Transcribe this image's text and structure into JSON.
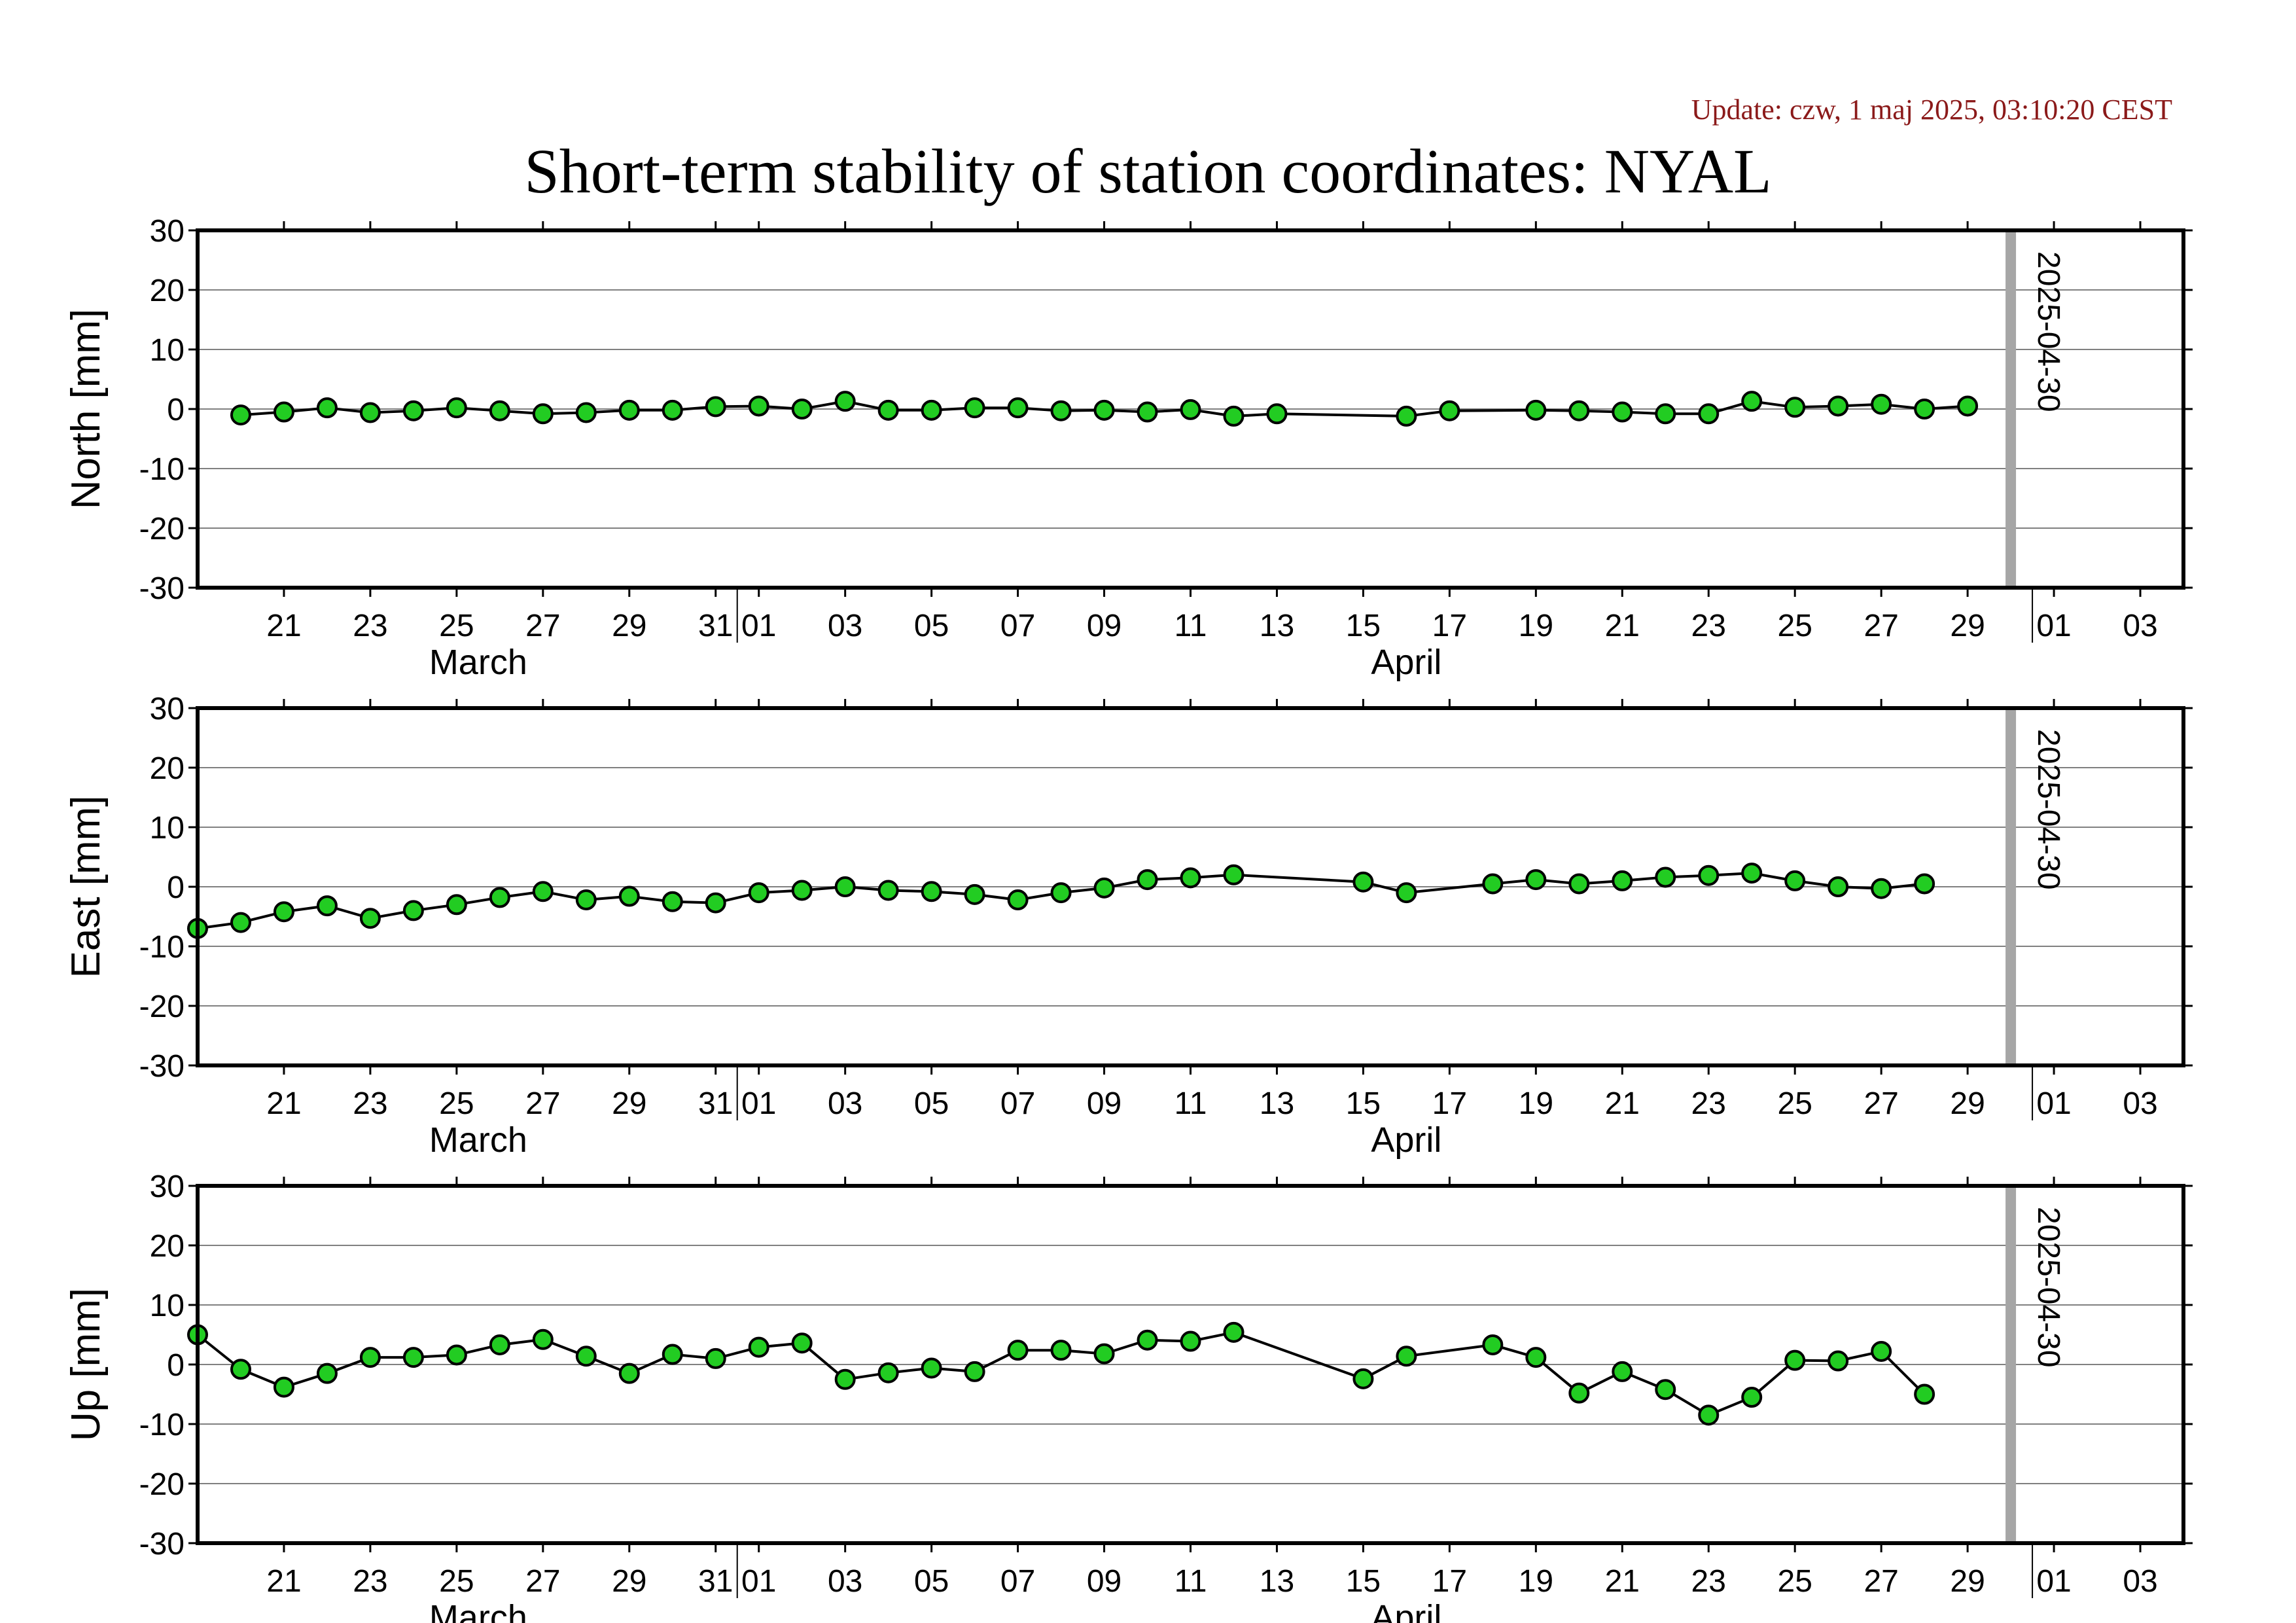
{
  "header": {
    "update": "Update: czw, 1 maj 2025, 03:10:20 CEST",
    "title": "Short-term stability of station coordinates: NYAL"
  },
  "colors": {
    "marker_fill": "#22cc22",
    "marker_edge": "#000000",
    "line": "#000000",
    "grid": "#808080",
    "current_date_line": "#a6a6a6",
    "update_text": "#8b1a1a"
  },
  "chart_data": [
    {
      "type": "line",
      "ylabel": "North [mm]",
      "ylim": [
        -30,
        30
      ],
      "yticks": [
        30,
        20,
        10,
        0,
        -10,
        -20,
        -30
      ],
      "xlim": [
        "2025-03-19",
        "2025-05-04"
      ],
      "xtick_labels": [
        "21",
        "23",
        "25",
        "27",
        "29",
        "31",
        "01",
        "03",
        "05",
        "07",
        "09",
        "11",
        "13",
        "15",
        "17",
        "19",
        "21",
        "23",
        "25",
        "27",
        "29",
        "01",
        "03"
      ],
      "month_labels": [
        "March",
        "April"
      ],
      "marker_line_date": "2025-04-30",
      "marker_line_label": "2025-04-30",
      "grid": true,
      "x": [
        "2025-03-20",
        "2025-03-21",
        "2025-03-22",
        "2025-03-23",
        "2025-03-24",
        "2025-03-25",
        "2025-03-26",
        "2025-03-27",
        "2025-03-28",
        "2025-03-29",
        "2025-03-30",
        "2025-03-31",
        "2025-04-01",
        "2025-04-02",
        "2025-04-03",
        "2025-04-04",
        "2025-04-05",
        "2025-04-06",
        "2025-04-07",
        "2025-04-08",
        "2025-04-09",
        "2025-04-10",
        "2025-04-11",
        "2025-04-12",
        "2025-04-13",
        "2025-04-16",
        "2025-04-17",
        "2025-04-19",
        "2025-04-20",
        "2025-04-21",
        "2025-04-22",
        "2025-04-23",
        "2025-04-24",
        "2025-04-25",
        "2025-04-26",
        "2025-04-27",
        "2025-04-28",
        "2025-04-29"
      ],
      "y": [
        -1.0,
        -0.5,
        0.2,
        -0.6,
        -0.3,
        0.2,
        -0.3,
        -0.8,
        -0.6,
        -0.2,
        -0.2,
        0.4,
        0.5,
        0.0,
        1.3,
        -0.2,
        -0.2,
        0.2,
        0.2,
        -0.3,
        -0.2,
        -0.5,
        -0.1,
        -1.2,
        -0.8,
        -1.2,
        -0.3,
        -0.2,
        -0.3,
        -0.5,
        -0.8,
        -0.8,
        1.3,
        0.3,
        0.5,
        0.8,
        0.0,
        0.5
      ]
    },
    {
      "type": "line",
      "ylabel": "East [mm]",
      "ylim": [
        -30,
        30
      ],
      "yticks": [
        30,
        20,
        10,
        0,
        -10,
        -20,
        -30
      ],
      "xlim": [
        "2025-03-19",
        "2025-05-04"
      ],
      "xtick_labels": [
        "21",
        "23",
        "25",
        "27",
        "29",
        "31",
        "01",
        "03",
        "05",
        "07",
        "09",
        "11",
        "13",
        "15",
        "17",
        "19",
        "21",
        "23",
        "25",
        "27",
        "29",
        "01",
        "03"
      ],
      "month_labels": [
        "March",
        "April"
      ],
      "marker_line_date": "2025-04-30",
      "marker_line_label": "2025-04-30",
      "grid": true,
      "x": [
        "2025-03-19",
        "2025-03-20",
        "2025-03-21",
        "2025-03-22",
        "2025-03-23",
        "2025-03-24",
        "2025-03-25",
        "2025-03-26",
        "2025-03-27",
        "2025-03-28",
        "2025-03-29",
        "2025-03-30",
        "2025-03-31",
        "2025-04-01",
        "2025-04-02",
        "2025-04-03",
        "2025-04-04",
        "2025-04-05",
        "2025-04-06",
        "2025-04-07",
        "2025-04-08",
        "2025-04-09",
        "2025-04-10",
        "2025-04-11",
        "2025-04-12",
        "2025-04-15",
        "2025-04-16",
        "2025-04-18",
        "2025-04-19",
        "2025-04-20",
        "2025-04-21",
        "2025-04-22",
        "2025-04-23",
        "2025-04-24",
        "2025-04-25",
        "2025-04-26",
        "2025-04-27",
        "2025-04-28"
      ],
      "y": [
        -7.0,
        -6.0,
        -4.2,
        -3.2,
        -5.3,
        -4.0,
        -3.0,
        -1.8,
        -0.8,
        -2.2,
        -1.6,
        -2.5,
        -2.7,
        -1.0,
        -0.6,
        0.0,
        -0.6,
        -0.8,
        -1.3,
        -2.2,
        -1.0,
        -0.2,
        1.2,
        1.5,
        2.0,
        0.8,
        -1.0,
        0.5,
        1.2,
        0.5,
        1.0,
        1.6,
        1.9,
        2.3,
        1.0,
        0.0,
        -0.3,
        0.5
      ]
    },
    {
      "type": "line",
      "ylabel": "Up [mm]",
      "ylim": [
        -30,
        30
      ],
      "yticks": [
        30,
        20,
        10,
        0,
        -10,
        -20,
        -30
      ],
      "xlim": [
        "2025-03-19",
        "2025-05-04"
      ],
      "xtick_labels": [
        "21",
        "23",
        "25",
        "27",
        "29",
        "31",
        "01",
        "03",
        "05",
        "07",
        "09",
        "11",
        "13",
        "15",
        "17",
        "19",
        "21",
        "23",
        "25",
        "27",
        "29",
        "01",
        "03"
      ],
      "month_labels": [
        "March",
        "April"
      ],
      "marker_line_date": "2025-04-30",
      "marker_line_label": "2025-04-30",
      "grid": true,
      "x": [
        "2025-03-19",
        "2025-03-20",
        "2025-03-21",
        "2025-03-22",
        "2025-03-23",
        "2025-03-24",
        "2025-03-25",
        "2025-03-26",
        "2025-03-27",
        "2025-03-28",
        "2025-03-29",
        "2025-03-30",
        "2025-03-31",
        "2025-04-01",
        "2025-04-02",
        "2025-04-03",
        "2025-04-04",
        "2025-04-05",
        "2025-04-06",
        "2025-04-07",
        "2025-04-08",
        "2025-04-09",
        "2025-04-10",
        "2025-04-11",
        "2025-04-12",
        "2025-04-15",
        "2025-04-16",
        "2025-04-18",
        "2025-04-19",
        "2025-04-20",
        "2025-04-21",
        "2025-04-22",
        "2025-04-23",
        "2025-04-24",
        "2025-04-25",
        "2025-04-26",
        "2025-04-27",
        "2025-04-28"
      ],
      "y": [
        5.0,
        -0.8,
        -3.8,
        -1.5,
        1.2,
        1.2,
        1.6,
        3.3,
        4.2,
        1.4,
        -1.5,
        1.7,
        1.0,
        2.9,
        3.6,
        -2.5,
        -1.4,
        -0.6,
        -1.2,
        2.4,
        2.4,
        1.8,
        4.1,
        3.9,
        5.4,
        -2.4,
        1.4,
        3.3,
        1.2,
        -4.8,
        -1.2,
        -4.2,
        -8.5,
        -5.5,
        0.7,
        0.6,
        2.2,
        -5.0
      ]
    }
  ]
}
